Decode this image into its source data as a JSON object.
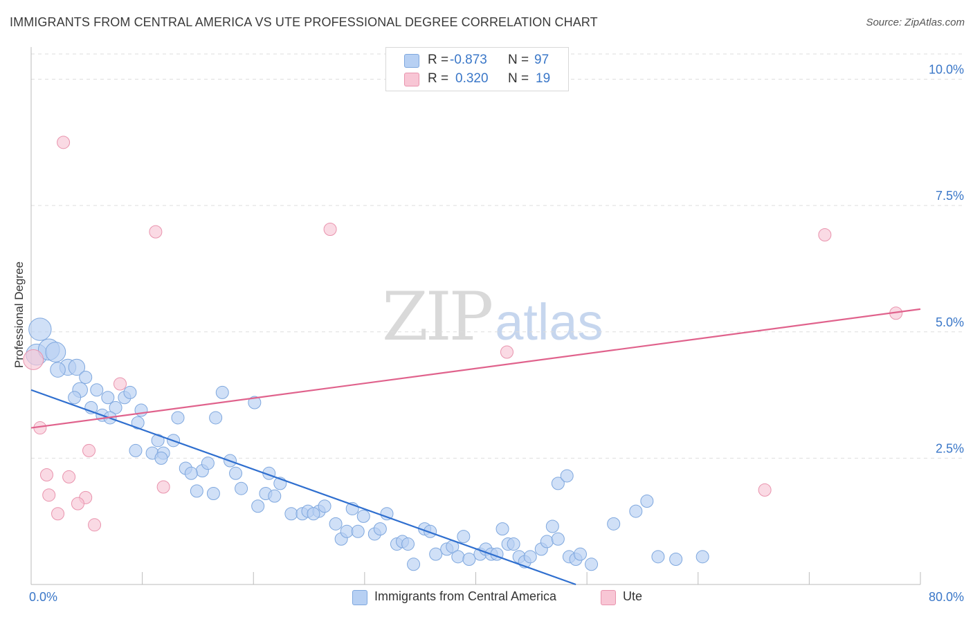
{
  "header": {
    "title": "IMMIGRANTS FROM CENTRAL AMERICA VS UTE PROFESSIONAL DEGREE CORRELATION CHART",
    "source": "Source: ZipAtlas.com"
  },
  "watermark": {
    "zip": "ZIP",
    "atlas": "atlas"
  },
  "colors": {
    "blue_fill": "#b7d0f3",
    "blue_stroke": "#7ea7de",
    "blue_line": "#2f6fcf",
    "pink_fill": "#f8c6d5",
    "pink_stroke": "#e993ad",
    "pink_line": "#e0628c",
    "tick_label": "#3a77c8",
    "grid": "#dddddd"
  },
  "legend_top": {
    "rows": [
      {
        "r_label": "R =",
        "r_value": "-0.873",
        "n_label": "N =",
        "n_value": "97"
      },
      {
        "r_label": "R =",
        "r_value": "0.320",
        "n_label": "N =",
        "n_value": "19"
      }
    ]
  },
  "chart_data": {
    "type": "scatter",
    "title": "IMMIGRANTS FROM CENTRAL AMERICA VS UTE PROFESSIONAL DEGREE CORRELATION CHART",
    "xlabel": "",
    "ylabel": "Professional Degree",
    "xlim": [
      0,
      80
    ],
    "ylim": [
      0,
      10.5
    ],
    "x_tick_labels": [
      "0.0%",
      "80.0%"
    ],
    "y_ticks": [
      2.5,
      5.0,
      7.5,
      10.0
    ],
    "y_tick_labels": [
      "2.5%",
      "5.0%",
      "7.5%",
      "10.0%"
    ],
    "grid": true,
    "legend_position": "bottom-center",
    "series": [
      {
        "name": "Immigrants from Central America",
        "color": "blue",
        "R": -0.873,
        "N": 97,
        "trend": {
          "x": [
            0.0,
            49.0
          ],
          "y": [
            3.85,
            0.0
          ]
        },
        "points": [
          [
            0.8,
            5.05,
            1.8
          ],
          [
            0.5,
            4.55,
            1.7
          ],
          [
            1.6,
            4.65,
            1.7
          ],
          [
            2.2,
            4.6,
            1.6
          ],
          [
            3.3,
            4.3,
            1.3
          ],
          [
            4.1,
            4.3,
            1.3
          ],
          [
            2.4,
            4.25,
            1.2
          ],
          [
            4.9,
            4.1,
            1
          ],
          [
            4.4,
            3.85,
            1.2
          ],
          [
            3.9,
            3.7,
            1
          ],
          [
            5.9,
            3.85,
            1
          ],
          [
            6.9,
            3.7,
            1
          ],
          [
            8.4,
            3.7,
            1
          ],
          [
            8.9,
            3.8,
            1
          ],
          [
            5.4,
            3.5,
            1
          ],
          [
            6.4,
            3.35,
            1
          ],
          [
            7.6,
            3.5,
            1
          ],
          [
            9.9,
            3.45,
            1
          ],
          [
            7.1,
            3.3,
            1
          ],
          [
            13.2,
            3.3,
            1
          ],
          [
            16.6,
            3.3,
            1
          ],
          [
            17.2,
            3.8,
            1
          ],
          [
            20.1,
            3.6,
            1
          ],
          [
            9.6,
            3.2,
            1
          ],
          [
            11.4,
            2.85,
            1
          ],
          [
            12.8,
            2.85,
            1
          ],
          [
            9.4,
            2.65,
            1
          ],
          [
            10.9,
            2.6,
            1
          ],
          [
            11.9,
            2.6,
            1
          ],
          [
            11.7,
            2.5,
            1
          ],
          [
            13.9,
            2.3,
            1
          ],
          [
            15.4,
            2.25,
            1
          ],
          [
            14.4,
            2.2,
            1
          ],
          [
            15.9,
            2.4,
            1
          ],
          [
            17.9,
            2.45,
            1
          ],
          [
            18.4,
            2.2,
            1
          ],
          [
            21.4,
            2.2,
            1
          ],
          [
            22.4,
            2.0,
            1
          ],
          [
            14.9,
            1.85,
            1
          ],
          [
            16.4,
            1.8,
            1
          ],
          [
            18.9,
            1.9,
            1
          ],
          [
            20.4,
            1.55,
            1
          ],
          [
            21.1,
            1.8,
            1
          ],
          [
            21.9,
            1.75,
            1
          ],
          [
            23.4,
            1.4,
            1
          ],
          [
            24.4,
            1.4,
            1
          ],
          [
            24.9,
            1.45,
            1
          ],
          [
            25.9,
            1.45,
            1
          ],
          [
            25.4,
            1.4,
            1
          ],
          [
            26.4,
            1.55,
            1
          ],
          [
            27.4,
            1.2,
            1
          ],
          [
            27.9,
            0.9,
            1
          ],
          [
            28.4,
            1.05,
            1
          ],
          [
            28.9,
            1.5,
            1
          ],
          [
            29.4,
            1.05,
            1
          ],
          [
            29.9,
            1.35,
            1
          ],
          [
            30.9,
            1.0,
            1
          ],
          [
            31.4,
            1.1,
            1
          ],
          [
            32.0,
            1.4,
            1
          ],
          [
            32.9,
            0.8,
            1
          ],
          [
            33.4,
            0.85,
            1
          ],
          [
            33.9,
            0.8,
            1
          ],
          [
            34.4,
            0.4,
            1
          ],
          [
            35.4,
            1.1,
            1
          ],
          [
            35.9,
            1.05,
            1
          ],
          [
            36.4,
            0.6,
            1
          ],
          [
            37.4,
            0.7,
            1
          ],
          [
            37.9,
            0.75,
            1
          ],
          [
            38.4,
            0.55,
            1
          ],
          [
            38.9,
            0.95,
            1
          ],
          [
            39.4,
            0.5,
            1
          ],
          [
            40.4,
            0.6,
            1
          ],
          [
            40.9,
            0.7,
            1
          ],
          [
            41.4,
            0.6,
            1
          ],
          [
            41.9,
            0.6,
            1
          ],
          [
            42.4,
            1.1,
            1
          ],
          [
            42.9,
            0.8,
            1
          ],
          [
            43.4,
            0.8,
            1
          ],
          [
            43.9,
            0.55,
            1
          ],
          [
            44.4,
            0.45,
            1
          ],
          [
            44.9,
            0.55,
            1
          ],
          [
            45.9,
            0.7,
            1
          ],
          [
            46.4,
            0.85,
            1
          ],
          [
            46.9,
            1.15,
            1
          ],
          [
            47.4,
            0.9,
            1
          ],
          [
            48.4,
            0.55,
            1
          ],
          [
            49.0,
            0.5,
            1
          ],
          [
            49.4,
            0.6,
            1
          ],
          [
            50.4,
            0.4,
            1
          ],
          [
            47.4,
            2.0,
            1
          ],
          [
            48.2,
            2.15,
            1
          ],
          [
            52.4,
            1.2,
            1
          ],
          [
            54.4,
            1.45,
            1
          ],
          [
            55.4,
            1.65,
            1
          ],
          [
            56.4,
            0.55,
            1
          ],
          [
            58.0,
            0.5,
            1
          ],
          [
            60.4,
            0.55,
            1
          ]
        ]
      },
      {
        "name": "Ute",
        "color": "pink",
        "R": 0.32,
        "N": 19,
        "trend": {
          "x": [
            0.0,
            80.0
          ],
          "y": [
            3.1,
            5.45
          ]
        },
        "points": [
          [
            0.2,
            4.45,
            1.6
          ],
          [
            0.8,
            3.1,
            1
          ],
          [
            2.9,
            8.75,
            1
          ],
          [
            11.2,
            6.98,
            1
          ],
          [
            26.9,
            7.03,
            1
          ],
          [
            8.0,
            3.97,
            1
          ],
          [
            5.2,
            2.65,
            1
          ],
          [
            1.4,
            2.17,
            1
          ],
          [
            3.4,
            2.13,
            1
          ],
          [
            11.9,
            1.93,
            1
          ],
          [
            1.6,
            1.77,
            1
          ],
          [
            4.9,
            1.72,
            1
          ],
          [
            4.2,
            1.6,
            1
          ],
          [
            2.4,
            1.4,
            1
          ],
          [
            5.7,
            1.18,
            1
          ],
          [
            42.8,
            4.6,
            1
          ],
          [
            66.0,
            1.87,
            1
          ],
          [
            71.4,
            6.92,
            1
          ],
          [
            77.8,
            5.37,
            1
          ]
        ]
      }
    ]
  },
  "legend_bottom": {
    "items": [
      "Immigrants from Central America",
      "Ute"
    ]
  }
}
